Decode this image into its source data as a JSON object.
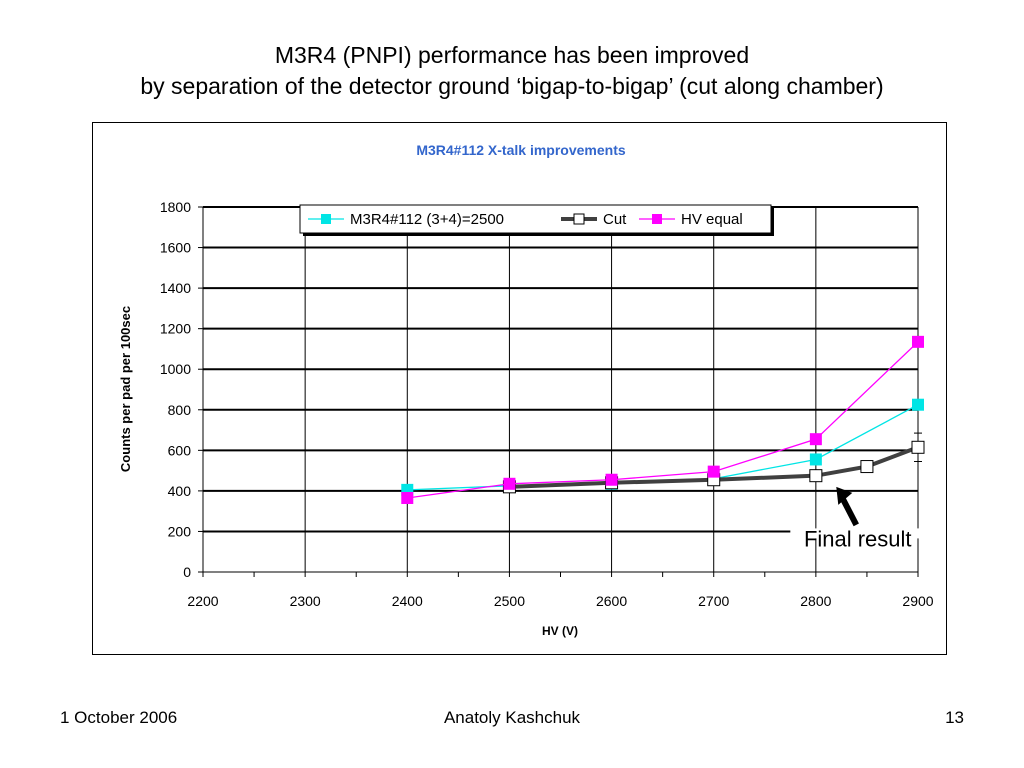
{
  "slide": {
    "title_line1": "M3R4 (PNPI) performance has been improved",
    "title_line2": "by separation of the detector ground ‘bigap-to-bigap’ (cut along chamber)",
    "footer_date": "1 October 2006",
    "footer_author": "Anatoly Kashchuk",
    "footer_page": "13"
  },
  "chart_data": {
    "type": "line",
    "title": "M3R4#112 X-talk improvements",
    "xlabel": "HV (V)",
    "ylabel": "Counts  per pad per 100sec",
    "xlim": [
      2200,
      2900
    ],
    "ylim": [
      0,
      1800
    ],
    "xticks": [
      2200,
      2300,
      2400,
      2500,
      2600,
      2700,
      2800,
      2900
    ],
    "yticks": [
      0,
      200,
      400,
      600,
      800,
      1000,
      1200,
      1400,
      1600,
      1800
    ],
    "grid": true,
    "legend": "top-center",
    "title_color": "#3366cc",
    "series": [
      {
        "name": "M3R4#112 (3+4)=2500",
        "color": "#00e5e5",
        "marker": "filled-square",
        "x": [
          2400,
          2500,
          2600,
          2700,
          2800,
          2900
        ],
        "y": [
          405,
          425,
          435,
          460,
          555,
          825
        ]
      },
      {
        "name": "Cut",
        "color": "#404040",
        "marker": "open-square",
        "x": [
          2500,
          2600,
          2700,
          2800,
          2850,
          2900
        ],
        "y": [
          420,
          440,
          455,
          475,
          520,
          615
        ],
        "error": [
          0,
          0,
          0,
          0,
          25,
          70
        ]
      },
      {
        "name": "HV equal",
        "color": "#ff00ff",
        "marker": "filled-square",
        "x": [
          2400,
          2500,
          2600,
          2700,
          2800,
          2900
        ],
        "y": [
          365,
          435,
          455,
          495,
          655,
          1135
        ]
      }
    ],
    "annotation": {
      "text": "Final result",
      "point_x": 2820,
      "point_y": 420
    }
  }
}
